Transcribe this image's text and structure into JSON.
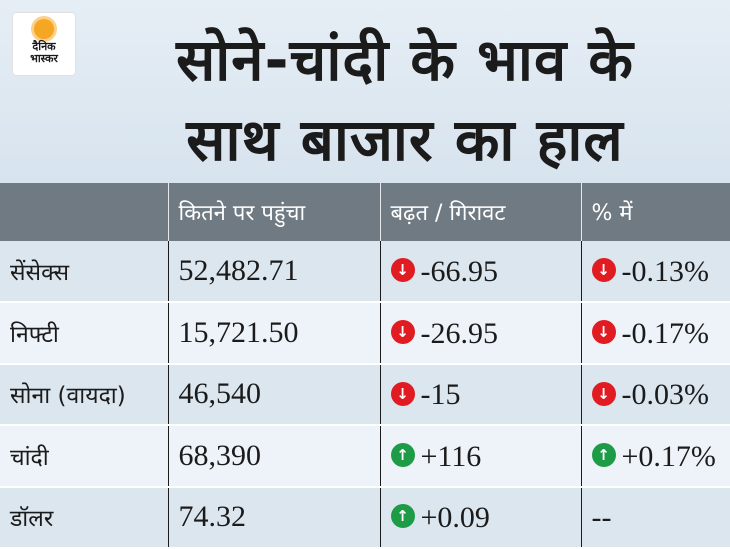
{
  "logo": {
    "text_line1": "दैनिक",
    "text_line2": "भास्कर"
  },
  "title": {
    "line1": "सोने-चांदी के भाव के",
    "line2": "साथ बाजार का हाल"
  },
  "table": {
    "headers": [
      "",
      "कितने पर पहुंचा",
      "बढ़त / गिरावट",
      "% में"
    ],
    "rows": [
      {
        "name": "सेंसेक्स",
        "value": "52,482.71",
        "change": "-66.95",
        "change_dir": "down",
        "pct": "-0.13%",
        "pct_dir": "down"
      },
      {
        "name": "निफ्टी",
        "value": "15,721.50",
        "change": "-26.95",
        "change_dir": "down",
        "pct": "-0.17%",
        "pct_dir": "down"
      },
      {
        "name": "सोना (वायदा)",
        "value": "46,540",
        "change": "-15",
        "change_dir": "down",
        "pct": "-0.03%",
        "pct_dir": "down"
      },
      {
        "name": "चांदी",
        "value": "68,390",
        "change": "+116",
        "change_dir": "up",
        "pct": "+0.17%",
        "pct_dir": "up"
      },
      {
        "name": "डॉलर",
        "value": "74.32",
        "change": "+0.09",
        "change_dir": "up",
        "pct": "--",
        "pct_dir": "none"
      }
    ]
  },
  "colors": {
    "down": "#e11b22",
    "up": "#1e9b47",
    "header_bg": "#6f7a82"
  },
  "icons": {
    "down": "arrow-down-icon",
    "up": "arrow-up-icon"
  }
}
